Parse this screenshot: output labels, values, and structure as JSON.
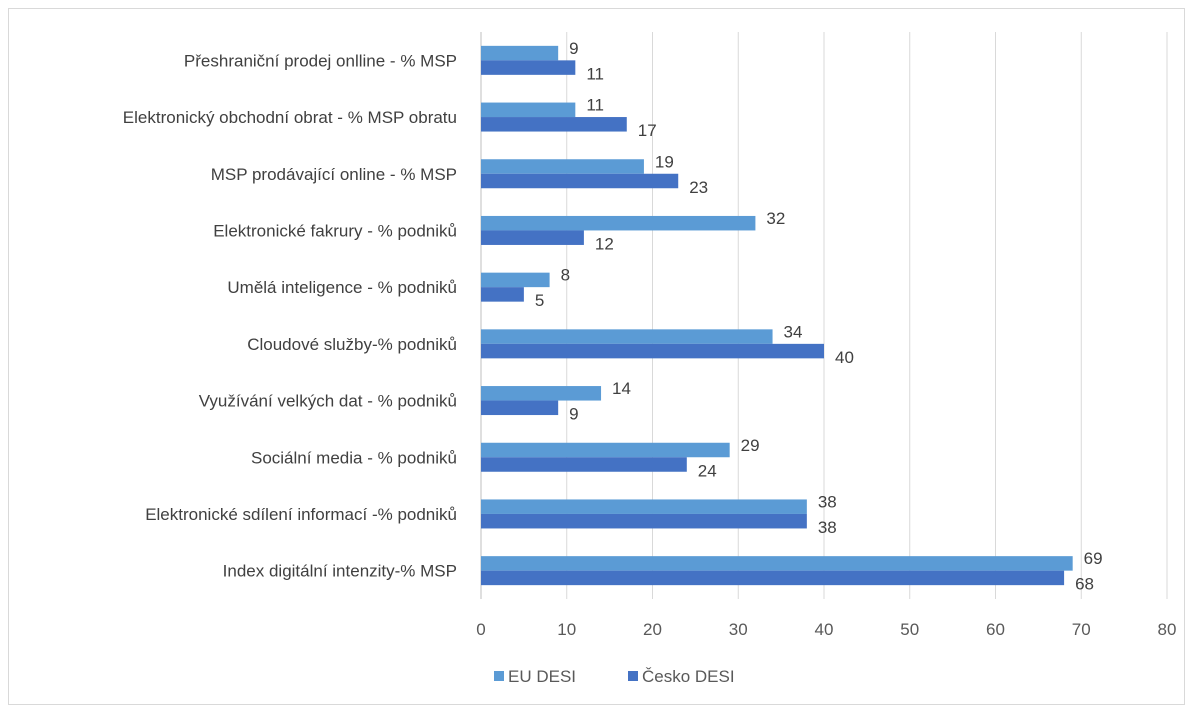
{
  "chart_data": {
    "type": "bar",
    "orientation": "horizontal",
    "categories": [
      "Přeshraniční prodej onlline - % MSP",
      "Elektronický obchodní obrat - % MSP obratu",
      "MSP prodávající online - % MSP",
      "Elektronické fakrury - % podniků",
      "Umělá inteligence - % podniků",
      "Cloudové služby-% podniků",
      "Využívání velkých dat - % podniků",
      "Sociální media - % podniků",
      "Elektronické sdílení informací -% podniků",
      "Index digitální intenzity-% MSP"
    ],
    "series": [
      {
        "name": "EU DESI",
        "color": "#5b9bd5",
        "values": [
          9,
          11,
          19,
          32,
          8,
          34,
          14,
          29,
          38,
          69
        ]
      },
      {
        "name": "Česko DESI",
        "color": "#4472c4",
        "values": [
          11,
          17,
          23,
          12,
          5,
          40,
          9,
          24,
          38,
          68
        ]
      }
    ],
    "xlim": [
      0,
      80
    ],
    "xticks": [
      "0",
      "10",
      "20",
      "30",
      "40",
      "50",
      "60",
      "70",
      "80"
    ],
    "grid": "vertical",
    "legend_position": "bottom",
    "title": "",
    "xlabel": "",
    "ylabel": ""
  }
}
